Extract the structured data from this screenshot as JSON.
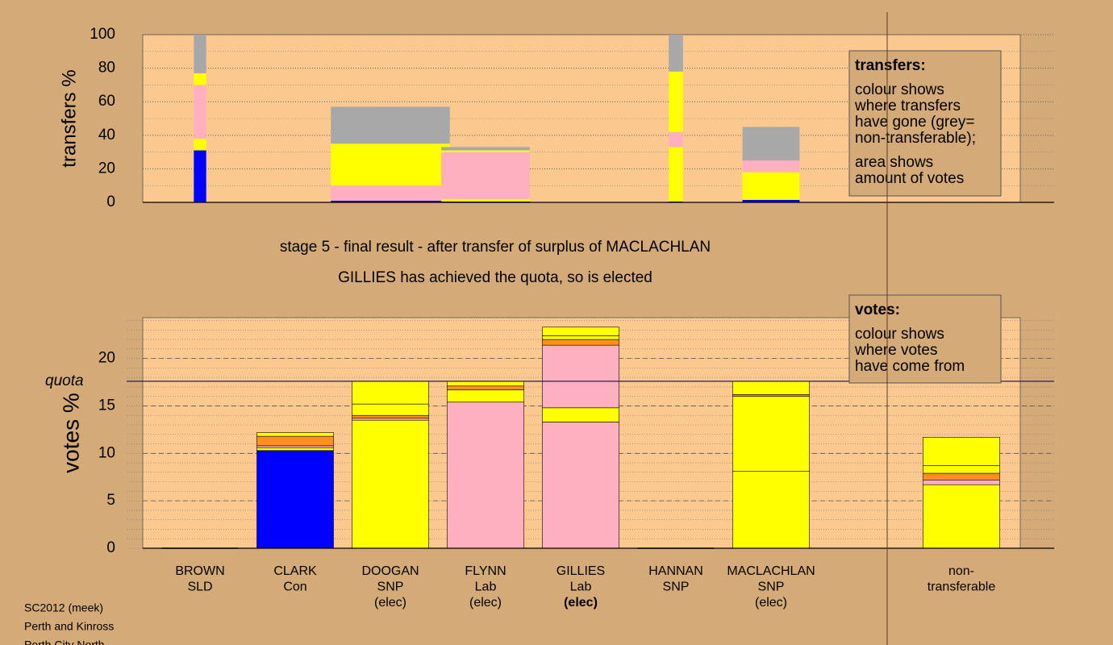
{
  "chart_data": [
    {
      "type": "bar",
      "ylabel": "transfers %",
      "ylim": [
        0,
        100
      ],
      "yticks": [
        0,
        20,
        40,
        60,
        80,
        100
      ],
      "bars": [
        {
          "x": 0,
          "width": 0.13,
          "segments": [
            {
              "value": 31,
              "color": "#0000ff"
            },
            {
              "value": 7,
              "color": "#ffff00"
            },
            {
              "value": 32,
              "color": "#ffb0c0"
            },
            {
              "value": 7,
              "color": "#ffff00"
            },
            {
              "value": 23,
              "color": "#a8a8a8"
            }
          ]
        },
        {
          "x": 2,
          "width": 1.25,
          "segments": [
            {
              "value": 1,
              "color": "#0000ff"
            },
            {
              "value": 9,
              "color": "#ffb0c0"
            },
            {
              "value": 25,
              "color": "#ffff00"
            },
            {
              "value": 22,
              "color": "#a8a8a8"
            }
          ]
        },
        {
          "x": 3,
          "width": 0.93,
          "segments": [
            {
              "value": 0.5,
              "color": "#0000ff"
            },
            {
              "value": 1.5,
              "color": "#ffff00"
            },
            {
              "value": 28,
              "color": "#ffb0c0"
            },
            {
              "value": 1,
              "color": "#ffff00"
            },
            {
              "value": 2,
              "color": "#a8a8a8"
            }
          ]
        },
        {
          "x": 5,
          "width": 0.15,
          "segments": [
            {
              "value": 0.5,
              "color": "#0000ff"
            },
            {
              "value": 32.5,
              "color": "#ffff00"
            },
            {
              "value": 9,
              "color": "#ffb0c0"
            },
            {
              "value": 36,
              "color": "#ffff00"
            },
            {
              "value": 22,
              "color": "#a8a8a8"
            }
          ]
        },
        {
          "x": 6,
          "width": 0.6,
          "segments": [
            {
              "value": 1.5,
              "color": "#0000ff"
            },
            {
              "value": 16.5,
              "color": "#ffff00"
            },
            {
              "value": 7,
              "color": "#ffb0c0"
            },
            {
              "value": 20,
              "color": "#a8a8a8"
            }
          ]
        }
      ],
      "legend": {
        "title": "transfers:",
        "paragraphs": [
          [
            "colour shows",
            "where transfers",
            "have gone (grey=",
            "non-transferable);"
          ],
          [
            "area shows",
            "amount of votes"
          ]
        ]
      }
    },
    {
      "type": "bar",
      "ylabel": "votes %",
      "ylim": [
        0,
        24.3
      ],
      "yticks": [
        0,
        5,
        10,
        15,
        20
      ],
      "quota": 17.6,
      "quota_label": "quota",
      "categories": [
        [
          "BROWN",
          "SLD"
        ],
        [
          "CLARK",
          "Con"
        ],
        [
          "DOOGAN",
          "SNP",
          "(elec)"
        ],
        [
          "FLYNN",
          "Lab",
          "(elec)"
        ],
        [
          "GILLIES",
          "Lab",
          "(elec)"
        ],
        [
          "HANNAN",
          "SNP"
        ],
        [
          "MACLACHLAN",
          "SNP",
          "(elec)"
        ],
        null,
        [
          "non-",
          "transferable"
        ]
      ],
      "bold_line": [
        4,
        2
      ],
      "bars": [
        [],
        [
          {
            "value": 10.3,
            "color": "#0000ff"
          },
          {
            "value": 0.3,
            "color": "#ffff00"
          },
          {
            "value": 0.2,
            "color": "#ffb0c0"
          },
          {
            "value": 1.0,
            "color": "#ff9020"
          },
          {
            "value": 0.4,
            "color": "#ffff00"
          }
        ],
        [
          {
            "value": 13.5,
            "color": "#ffff00"
          },
          {
            "value": 0.2,
            "color": "#ffb0c0"
          },
          {
            "value": 0.3,
            "color": "#ff9020"
          },
          {
            "value": 1.2,
            "color": "#ffff00"
          },
          {
            "value": 2.4,
            "color": "#ffff00"
          }
        ],
        [
          {
            "value": 15.4,
            "color": "#ffb0c0"
          },
          {
            "value": 1.3,
            "color": "#ffff00"
          },
          {
            "value": 0.4,
            "color": "#ff9020"
          },
          {
            "value": 0.5,
            "color": "#ffff00"
          }
        ],
        [
          {
            "value": 13.3,
            "color": "#ffb0c0"
          },
          {
            "value": 1.5,
            "color": "#ffff00"
          },
          {
            "value": 6.6,
            "color": "#ffb0c0"
          },
          {
            "value": 0.6,
            "color": "#ff9020"
          },
          {
            "value": 0.4,
            "color": "#ffff00"
          },
          {
            "value": 0.9,
            "color": "#ffff00"
          }
        ],
        [],
        [
          {
            "value": 8.1,
            "color": "#ffff00"
          },
          {
            "value": 7.9,
            "color": "#ffff00"
          },
          {
            "value": 0.2,
            "color": "#ff9020"
          },
          {
            "value": 1.4,
            "color": "#ffff00"
          }
        ],
        null,
        [
          {
            "value": 6.7,
            "color": "#ffff00"
          },
          {
            "value": 0.5,
            "color": "#ffb0c0"
          },
          {
            "value": 0.7,
            "color": "#ff9020"
          },
          {
            "value": 0.8,
            "color": "#ffff00"
          },
          {
            "value": 3.0,
            "color": "#ffff00"
          }
        ]
      ],
      "legend": {
        "title": "votes:",
        "paragraphs": [
          [
            "colour shows",
            "where votes",
            "have come from"
          ]
        ]
      }
    }
  ],
  "captions": [
    "stage 5 - final result - after transfer of surplus of MACLACHLAN",
    "GILLIES has achieved the quota, so is elected"
  ],
  "footer": [
    "SC2012 (meek)",
    "Perth and Kinross",
    "Perth City North"
  ]
}
